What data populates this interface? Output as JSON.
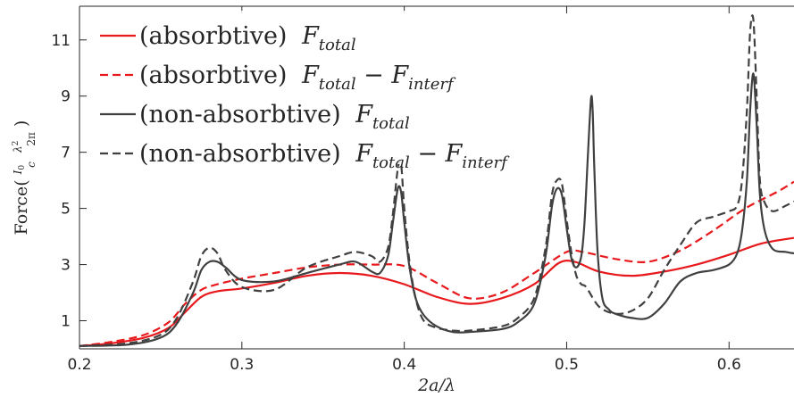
{
  "chart_data": {
    "type": "line",
    "xlabel": "2a/λ",
    "ylabel_parts": {
      "main": "Force(",
      "num1": "I",
      "sub1": "0",
      "den1": "c",
      "num2": "λ",
      "sup2": "2",
      "den2": "2π",
      "close": ")"
    },
    "xlim": [
      0.2,
      0.64
    ],
    "ylim": [
      0,
      12.2
    ],
    "xticks": [
      0.2,
      0.3,
      0.4,
      0.5,
      0.6
    ],
    "xtick_labels": [
      "0.2",
      "0.3",
      "0.4",
      "0.5",
      "0.6"
    ],
    "yticks": [
      1,
      3,
      5,
      7,
      9,
      11
    ],
    "ytick_labels": [
      "1",
      "3",
      "5",
      "7",
      "9",
      "11"
    ],
    "grid": false,
    "legend_placement": "top-left",
    "colors": {
      "red": "#e8191c",
      "gray": "#404040",
      "axis": "#262626"
    },
    "series": [
      {
        "name": "(absorbtive) F_total",
        "legend": {
          "prefix": "(absorbtive) ",
          "main": "F",
          "sub": "total",
          "tail": "",
          "tail_sub": ""
        },
        "color": "#e8191c",
        "dash": "solid",
        "x": [
          0.2,
          0.22,
          0.24,
          0.255,
          0.265,
          0.275,
          0.285,
          0.3,
          0.32,
          0.34,
          0.36,
          0.38,
          0.4,
          0.42,
          0.44,
          0.46,
          0.48,
          0.495,
          0.505,
          0.52,
          0.54,
          0.56,
          0.58,
          0.6,
          0.62,
          0.64
        ],
        "y": [
          0.1,
          0.2,
          0.4,
          0.75,
          1.3,
          1.85,
          2.05,
          2.15,
          2.35,
          2.6,
          2.7,
          2.6,
          2.3,
          1.85,
          1.6,
          1.8,
          2.3,
          3.05,
          3.1,
          2.75,
          2.6,
          2.75,
          3.0,
          3.35,
          3.75,
          3.95
        ]
      },
      {
        "name": "(absorbtive) F_total − F_interf",
        "legend": {
          "prefix": "(absorbtive) ",
          "main": "F",
          "sub": "total",
          "tail": " − F",
          "tail_sub": "interf"
        },
        "color": "#e8191c",
        "dash": "dashed",
        "x": [
          0.2,
          0.22,
          0.24,
          0.255,
          0.265,
          0.275,
          0.285,
          0.3,
          0.32,
          0.34,
          0.36,
          0.38,
          0.4,
          0.42,
          0.44,
          0.46,
          0.48,
          0.5,
          0.51,
          0.53,
          0.55,
          0.57,
          0.59,
          0.61,
          0.63,
          0.64
        ],
        "y": [
          0.1,
          0.25,
          0.5,
          0.95,
          1.6,
          2.1,
          2.3,
          2.5,
          2.7,
          2.9,
          3.0,
          3.0,
          2.95,
          2.35,
          1.8,
          2.0,
          2.7,
          3.45,
          3.45,
          3.2,
          3.1,
          3.5,
          4.2,
          5.0,
          5.6,
          5.95
        ]
      },
      {
        "name": "(non-absorbtive) F_total",
        "legend": {
          "prefix": "(non-absorbtive) ",
          "main": "F",
          "sub": "total",
          "tail": "",
          "tail_sub": ""
        },
        "color": "#404040",
        "dash": "solid",
        "x": [
          0.2,
          0.23,
          0.25,
          0.26,
          0.27,
          0.275,
          0.28,
          0.285,
          0.29,
          0.3,
          0.32,
          0.34,
          0.36,
          0.37,
          0.38,
          0.385,
          0.39,
          0.393,
          0.396,
          0.398,
          0.4,
          0.403,
          0.407,
          0.412,
          0.42,
          0.43,
          0.44,
          0.46,
          0.47,
          0.48,
          0.487,
          0.491,
          0.494,
          0.497,
          0.5,
          0.503,
          0.506,
          0.509,
          0.511,
          0.513,
          0.515,
          0.516,
          0.517,
          0.519,
          0.522,
          0.526,
          0.53,
          0.54,
          0.55,
          0.56,
          0.57,
          0.58,
          0.59,
          0.6,
          0.605,
          0.608,
          0.611,
          0.613,
          0.615,
          0.617,
          0.619,
          0.622,
          0.627,
          0.635,
          0.64
        ],
        "y": [
          0.1,
          0.15,
          0.4,
          0.9,
          2.0,
          2.8,
          3.1,
          3.1,
          2.9,
          2.45,
          2.4,
          2.7,
          3.0,
          3.1,
          2.75,
          2.7,
          3.3,
          4.5,
          5.7,
          5.6,
          4.5,
          3.0,
          1.8,
          1.2,
          0.8,
          0.6,
          0.6,
          0.7,
          0.95,
          1.6,
          3.3,
          5.1,
          5.7,
          5.5,
          4.3,
          3.2,
          2.9,
          3.3,
          4.5,
          6.8,
          8.9,
          8.5,
          6.5,
          3.5,
          1.8,
          1.4,
          1.25,
          1.1,
          1.1,
          1.6,
          2.4,
          2.7,
          2.8,
          3.0,
          3.4,
          4.2,
          6.0,
          8.5,
          9.8,
          8.0,
          5.5,
          4.2,
          3.55,
          3.45,
          3.4
        ]
      },
      {
        "name": "(non-absorbtive) F_total − F_interf",
        "legend": {
          "prefix": "(non-absorbtive) ",
          "main": "F",
          "sub": "total",
          "tail": " − F",
          "tail_sub": "interf"
        },
        "color": "#404040",
        "dash": "dashed",
        "x": [
          0.2,
          0.23,
          0.25,
          0.26,
          0.27,
          0.275,
          0.28,
          0.285,
          0.29,
          0.3,
          0.32,
          0.34,
          0.36,
          0.37,
          0.38,
          0.385,
          0.39,
          0.393,
          0.396,
          0.398,
          0.4,
          0.403,
          0.407,
          0.412,
          0.42,
          0.43,
          0.44,
          0.46,
          0.47,
          0.48,
          0.487,
          0.491,
          0.494,
          0.497,
          0.5,
          0.503,
          0.506,
          0.509,
          0.512,
          0.52,
          0.53,
          0.54,
          0.55,
          0.56,
          0.57,
          0.58,
          0.59,
          0.6,
          0.605,
          0.608,
          0.611,
          0.613,
          0.615,
          0.617,
          0.619,
          0.622,
          0.627,
          0.635,
          0.64
        ],
        "y": [
          0.1,
          0.2,
          0.5,
          1.1,
          2.4,
          3.3,
          3.6,
          3.4,
          2.8,
          2.2,
          2.1,
          2.9,
          3.3,
          3.45,
          3.3,
          3.1,
          3.6,
          4.8,
          6.4,
          6.6,
          5.0,
          3.2,
          1.8,
          1.0,
          0.75,
          0.65,
          0.65,
          0.8,
          1.1,
          1.8,
          3.6,
          5.5,
          6.0,
          5.9,
          4.6,
          3.4,
          2.6,
          2.3,
          2.2,
          1.5,
          1.25,
          1.35,
          1.8,
          2.8,
          3.7,
          4.5,
          4.7,
          4.9,
          5.1,
          6.0,
          8.5,
          11.3,
          11.7,
          9.0,
          6.0,
          5.2,
          4.9,
          5.1,
          5.25
        ]
      }
    ]
  }
}
